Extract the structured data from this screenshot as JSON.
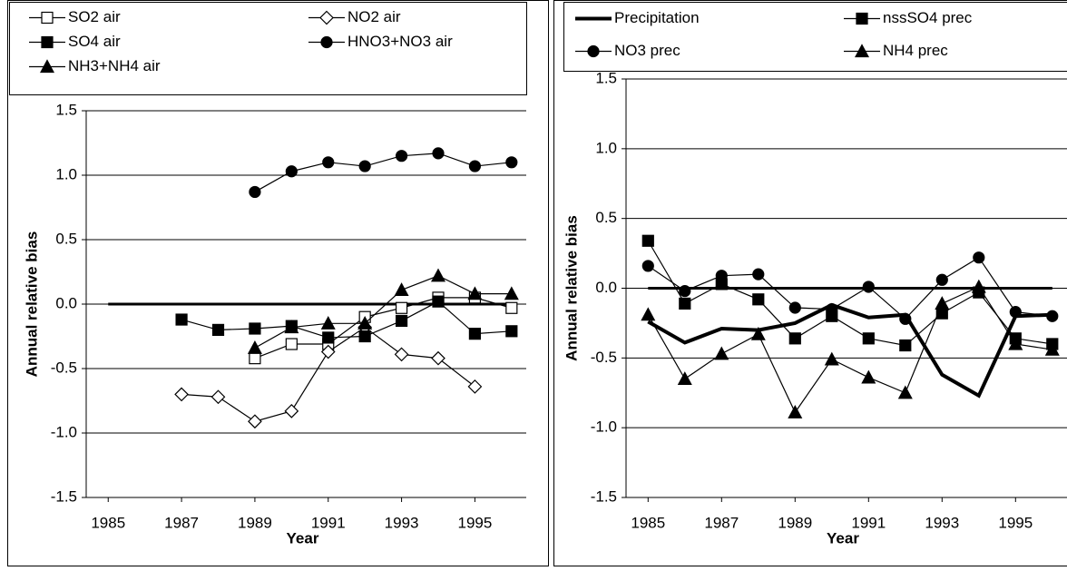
{
  "chart_data": [
    {
      "type": "line",
      "xlabel": "Year",
      "ylabel": "Annual relative bias",
      "grid": true,
      "x": [
        1985,
        1986,
        1987,
        1988,
        1989,
        1990,
        1991,
        1992,
        1993,
        1994,
        1995,
        1996
      ],
      "xlim": [
        1984.4,
        1996.4
      ],
      "xticks": [
        1985,
        1987,
        1989,
        1991,
        1993,
        1995
      ],
      "ylim": [
        -1.5,
        1.5
      ],
      "yticks": [
        1.5,
        {
          "value": 1,
          "label": "1.0"
        },
        0.5,
        {
          "value": 0,
          "label": "0.0"
        },
        -0.5,
        {
          "value": -1,
          "label": "-1.0"
        },
        -1.5
      ],
      "series": [
        {
          "name": "SO2 air",
          "color": "#000000",
          "marker": "square-open",
          "values": [
            null,
            null,
            null,
            null,
            -0.42,
            -0.31,
            -0.31,
            -0.1,
            -0.03,
            0.05,
            0.05,
            -0.03
          ]
        },
        {
          "name": "NO2 air",
          "color": "#000000",
          "marker": "diamond-open",
          "values": [
            null,
            null,
            -0.7,
            -0.72,
            -0.91,
            -0.83,
            -0.37,
            -0.18,
            -0.39,
            -0.42,
            -0.64,
            null
          ]
        },
        {
          "name": "SO4 air",
          "color": "#000000",
          "marker": "square",
          "values": [
            null,
            null,
            -0.12,
            -0.2,
            -0.19,
            -0.17,
            -0.26,
            -0.25,
            -0.13,
            0.02,
            -0.23,
            -0.21
          ]
        },
        {
          "name": "HNO3+NO3 air",
          "color": "#000000",
          "marker": "circle",
          "values": [
            null,
            null,
            null,
            null,
            0.87,
            1.03,
            1.1,
            1.07,
            1.15,
            1.17,
            1.07,
            1.1
          ]
        },
        {
          "name": "NH3+NH4 air",
          "color": "#000000",
          "marker": "triangle",
          "values": [
            null,
            null,
            null,
            null,
            -0.34,
            -0.18,
            -0.15,
            -0.15,
            0.11,
            0.22,
            0.08,
            0.08
          ]
        }
      ]
    },
    {
      "type": "line",
      "xlabel": "Year",
      "ylabel": "Annual relative bias",
      "grid": true,
      "x": [
        1985,
        1986,
        1987,
        1988,
        1989,
        1990,
        1991,
        1992,
        1993,
        1994,
        1995,
        1996
      ],
      "xlim": [
        1984.4,
        1996.4
      ],
      "xticks": [
        1985,
        1987,
        1989,
        1991,
        1993,
        1995
      ],
      "ylim": [
        -1.5,
        1.5
      ],
      "yticks": [
        1.5,
        {
          "value": 1,
          "label": "1.0"
        },
        0.5,
        {
          "value": 0,
          "label": "0.0"
        },
        -0.5,
        {
          "value": -1,
          "label": "-1.0"
        },
        -1.5
      ],
      "series": [
        {
          "name": "Precipitation",
          "color": "#000000",
          "marker": "none",
          "line_width": 4,
          "values": [
            -0.24,
            -0.39,
            -0.29,
            -0.3,
            -0.25,
            -0.12,
            -0.21,
            -0.19,
            -0.62,
            -0.77,
            -0.2,
            -0.19
          ]
        },
        {
          "name": "nssSO4 prec",
          "color": "#000000",
          "marker": "square",
          "values": [
            0.34,
            -0.11,
            0.03,
            -0.08,
            -0.36,
            -0.2,
            -0.36,
            -0.41,
            -0.18,
            -0.03,
            -0.36,
            -0.4
          ]
        },
        {
          "name": "NO3 prec",
          "color": "#000000",
          "marker": "circle",
          "values": [
            0.16,
            -0.02,
            0.09,
            0.1,
            -0.14,
            -0.15,
            0.01,
            -0.22,
            0.06,
            0.22,
            -0.17,
            -0.2
          ]
        },
        {
          "name": "NH4 prec",
          "color": "#000000",
          "marker": "triangle",
          "values": [
            -0.19,
            -0.65,
            -0.47,
            -0.33,
            -0.89,
            -0.51,
            -0.64,
            -0.75,
            -0.11,
            0.01,
            -0.4,
            -0.44
          ]
        }
      ]
    }
  ]
}
